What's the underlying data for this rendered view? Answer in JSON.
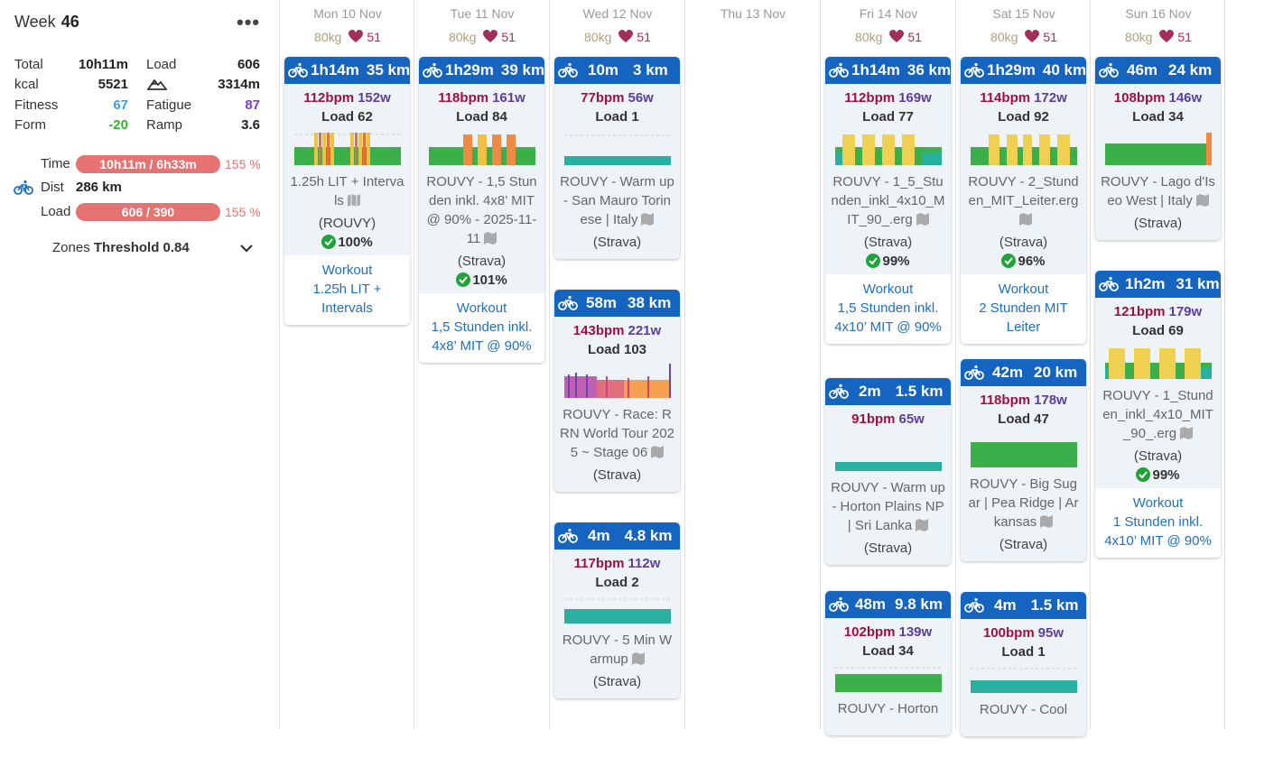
{
  "sidebar": {
    "week_label": "Week",
    "week_num": "46",
    "more": "•••",
    "stats": {
      "total_label": "Total",
      "total": "10h11m",
      "load_label": "Load",
      "load": "606",
      "kcal_label": "kcal",
      "kcal": "5521",
      "elev": "3314m",
      "fitness_label": "Fitness",
      "fitness": "67",
      "fatigue_label": "Fatigue",
      "fatigue": "87",
      "form_label": "Form",
      "form": "-20",
      "ramp_label": "Ramp",
      "ramp": "3.6"
    },
    "bars": {
      "time_label": "Time",
      "time_text": "10h11m / 6h33m",
      "time_pct": "155 %",
      "dist_label": "Dist",
      "dist": "286 km",
      "load_label": "Load",
      "load_text": "606 / 390",
      "load_pct": "155 %"
    },
    "zones_label": "Zones",
    "zones_value": "Threshold 0.84"
  },
  "days": [
    {
      "title": "Mon 10 Nov",
      "weight": "80kg",
      "hr": "51"
    },
    {
      "title": "Tue 11 Nov",
      "weight": "80kg",
      "hr": "51"
    },
    {
      "title": "Wed 12 Nov",
      "weight": "80kg",
      "hr": "51"
    },
    {
      "title": "Thu 13 Nov"
    },
    {
      "title": "Fri 14 Nov",
      "weight": "80kg",
      "hr": "51"
    },
    {
      "title": "Sat 15 Nov",
      "weight": "80kg",
      "hr": "51"
    },
    {
      "title": "Sun 16 Nov",
      "weight": "80kg",
      "hr": "51"
    }
  ],
  "activities": {
    "mon1": {
      "dur": "1h14m",
      "dist": "35 km",
      "bpm": "112bpm",
      "watts": "152w",
      "load": "Load 62",
      "name": "1.25h LIT + Intervals",
      "src": "(ROUVY)",
      "compliance": "100%",
      "workout": [
        "Workout",
        "1.25h LIT +",
        "Intervals"
      ]
    },
    "tue1": {
      "dur": "1h29m",
      "dist": "39 km",
      "bpm": "118bpm",
      "watts": "161w",
      "load": "Load 84",
      "name": "ROUVY - 1,5 Stunden inkl. 4x8’ MIT @ 90% - 2025-11-11",
      "src": "(Strava)",
      "compliance": "101%",
      "workout": [
        "Workout",
        "1,5 Stunden inkl.",
        "4x8’ MIT @ 90%"
      ]
    },
    "wed1": {
      "dur": "10m",
      "dist": "3 km",
      "bpm": "77bpm",
      "watts": "56w",
      "load": "Load 1",
      "name": "ROUVY - Warm up - San Mauro Torinese | Italy",
      "src": "(Strava)"
    },
    "wed2": {
      "dur": "58m",
      "dist": "38 km",
      "bpm": "143bpm",
      "watts": "221w",
      "load": "Load 103",
      "name": "ROUVY - Race: RRN World Tour 2025 ~ Stage 06",
      "src": "(Strava)"
    },
    "wed3": {
      "dur": "4m",
      "dist": "4.8 km",
      "bpm": "117bpm",
      "watts": "112w",
      "load": "Load 2",
      "name": "ROUVY - 5 Min Warmup",
      "src": "(Strava)"
    },
    "fri1": {
      "dur": "1h14m",
      "dist": "36 km",
      "bpm": "112bpm",
      "watts": "169w",
      "load": "Load 77",
      "name": "ROUVY - 1_5_Stunden_inkl_4x10_MIT_90_.erg",
      "src": "(Strava)",
      "compliance": "99%",
      "workout": [
        "Workout",
        "1,5 Stunden inkl.",
        "4x10’ MIT @ 90%"
      ]
    },
    "fri2": {
      "dur": "2m",
      "dist": "1.5 km",
      "bpm": "91bpm",
      "watts": "65w",
      "name": "ROUVY - Warm up - Horton Plains NP | Sri Lanka",
      "src": "(Strava)"
    },
    "fri3": {
      "dur": "48m",
      "dist": "9.8 km",
      "bpm": "102bpm",
      "watts": "139w",
      "load": "Load 34",
      "name": "ROUVY - Horton"
    },
    "sat1": {
      "dur": "1h29m",
      "dist": "40 km",
      "bpm": "114bpm",
      "watts": "172w",
      "load": "Load 92",
      "name": "ROUVY - 2_Stunden_MIT_Leiter.erg",
      "src": "(Strava)",
      "compliance": "96%",
      "workout": [
        "Workout",
        "2 Stunden MIT",
        "Leiter"
      ]
    },
    "sat2": {
      "dur": "42m",
      "dist": "20 km",
      "bpm": "118bpm",
      "watts": "178w",
      "load": "Load 47",
      "name": "ROUVY - Big Sugar | Pea Ridge | Arkansas",
      "src": "(Strava)"
    },
    "sat3": {
      "dur": "4m",
      "dist": "1.5 km",
      "bpm": "100bpm",
      "watts": "95w",
      "load": "Load 1",
      "name": "ROUVY - Cool"
    },
    "sun1": {
      "dur": "46m",
      "dist": "24 km",
      "bpm": "108bpm",
      "watts": "146w",
      "load": "Load 34",
      "name": "ROUVY - Lago d'Iseo West | Italy",
      "src": "(Strava)"
    },
    "sun2": {
      "dur": "1h2m",
      "dist": "31 km",
      "bpm": "121bpm",
      "watts": "179w",
      "load": "Load 69",
      "name": "ROUVY - 1_Stunden_inkl_4x10_MIT_90_.erg",
      "src": "(Strava)",
      "compliance": "99%",
      "workout": [
        "Workout",
        "1 Stunden inkl.",
        "4x10’ MIT @ 90%"
      ]
    }
  },
  "colors": {
    "header_blue": "#1565c0",
    "bpm": "#a0103c",
    "watts": "#5a3ea0",
    "fitness": "#3ba0e0",
    "fatigue": "#7b3fc8",
    "form": "#2eb82e",
    "bar": "#e57373",
    "link": "#1e6fc0"
  }
}
